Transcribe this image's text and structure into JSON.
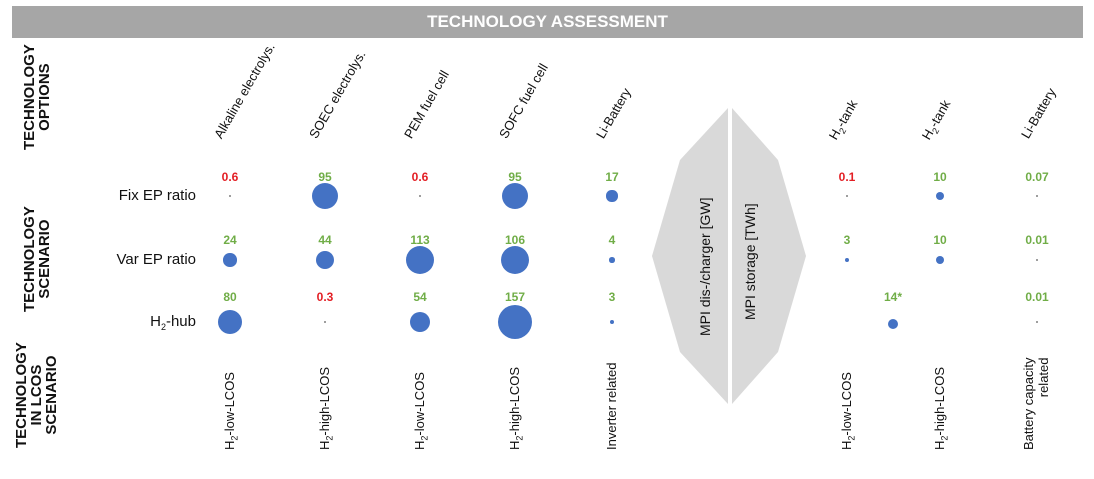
{
  "banner": "TECHNOLOGY ASSESSMENT",
  "side_labels": {
    "options": [
      "TECHNOLOGY",
      "OPTIONS"
    ],
    "scenario": [
      "TECHNOLOGY",
      "SCENARIO"
    ],
    "lcos": [
      "TECHNOLOGY",
      "IN LCOS",
      "SCENARIO"
    ]
  },
  "columns": [
    {
      "name_main": "Alkaline electrolys.",
      "name_sub": "",
      "name_tail": "",
      "lcos_main": "H",
      "lcos_sub": "2",
      "lcos_tail": "-low-LCOS",
      "lcos_line2": ""
    },
    {
      "name_main": "SOEC electrolys.",
      "name_sub": "",
      "name_tail": "",
      "lcos_main": "H",
      "lcos_sub": "2",
      "lcos_tail": "-high-LCOS",
      "lcos_line2": ""
    },
    {
      "name_main": "PEM fuel cell",
      "name_sub": "",
      "name_tail": "",
      "lcos_main": "H",
      "lcos_sub": "2",
      "lcos_tail": "-low-LCOS",
      "lcos_line2": ""
    },
    {
      "name_main": "SOFC fuel cell",
      "name_sub": "",
      "name_tail": "",
      "lcos_main": "H",
      "lcos_sub": "2",
      "lcos_tail": "-high-LCOS",
      "lcos_line2": ""
    },
    {
      "name_main": "Li-Battery",
      "name_sub": "",
      "name_tail": "",
      "lcos_main": "Inverter related",
      "lcos_sub": "",
      "lcos_tail": "",
      "lcos_line2": ""
    },
    {
      "name_main": "H",
      "name_sub": "2",
      "name_tail": "-tank",
      "lcos_main": "H",
      "lcos_sub": "2",
      "lcos_tail": "-low-LCOS",
      "lcos_line2": ""
    },
    {
      "name_main": "H",
      "name_sub": "2",
      "name_tail": "-tank",
      "lcos_main": "H",
      "lcos_sub": "2",
      "lcos_tail": "-high-LCOS",
      "lcos_line2": ""
    },
    {
      "name_main": "Li-Battery",
      "name_sub": "",
      "name_tail": "",
      "lcos_main": "Battery capacity",
      "lcos_sub": "",
      "lcos_tail": "",
      "lcos_line2": "related"
    }
  ],
  "rows": [
    {
      "label_main": "Fix EP ratio",
      "label_sub": "",
      "label_tail": ""
    },
    {
      "label_main": "Var EP ratio",
      "label_sub": "",
      "label_tail": ""
    },
    {
      "label_main": "H",
      "label_sub": "2",
      "label_tail": "-hub"
    }
  ],
  "cells": [
    [
      {
        "text": "0.6",
        "color": "red",
        "value": 0.6
      },
      {
        "text": "95",
        "color": "green",
        "value": 95
      },
      {
        "text": "0.6",
        "color": "red",
        "value": 0.6
      },
      {
        "text": "95",
        "color": "green",
        "value": 95
      },
      {
        "text": "17",
        "color": "green",
        "value": 17
      },
      {
        "text": "0.1",
        "color": "red",
        "value": 0.1
      },
      {
        "text": "10",
        "color": "green",
        "value": 10
      },
      {
        "text": "0.07",
        "color": "green",
        "value": 0.07
      }
    ],
    [
      {
        "text": "24",
        "color": "green",
        "value": 24
      },
      {
        "text": "44",
        "color": "green",
        "value": 44
      },
      {
        "text": "113",
        "color": "green",
        "value": 113
      },
      {
        "text": "106",
        "color": "green",
        "value": 106
      },
      {
        "text": "4",
        "color": "green",
        "value": 4
      },
      {
        "text": "3",
        "color": "green",
        "value": 3
      },
      {
        "text": "10",
        "color": "green",
        "value": 10
      },
      {
        "text": "0.01",
        "color": "green",
        "value": 0.01
      }
    ],
    [
      {
        "text": "80",
        "color": "green",
        "value": 80
      },
      {
        "text": "0.3",
        "color": "red",
        "value": 0.3
      },
      {
        "text": "54",
        "color": "green",
        "value": 54
      },
      {
        "text": "157",
        "color": "green",
        "value": 157
      },
      {
        "text": "3",
        "color": "green",
        "value": 3
      },
      {
        "text": "14*",
        "color": "green",
        "value": 14
      },
      null,
      {
        "text": "0.01",
        "color": "green",
        "value": 0.01
      }
    ]
  ],
  "arrows": {
    "left": "MPI dis-/charger [GW]",
    "right": "MPI storage [TWh]"
  },
  "colors": {
    "bubble": "#4472c4",
    "red": "#e31e24",
    "green": "#70ad47",
    "arrow": "#d9d9d9",
    "banner": "#a6a6a6"
  }
}
